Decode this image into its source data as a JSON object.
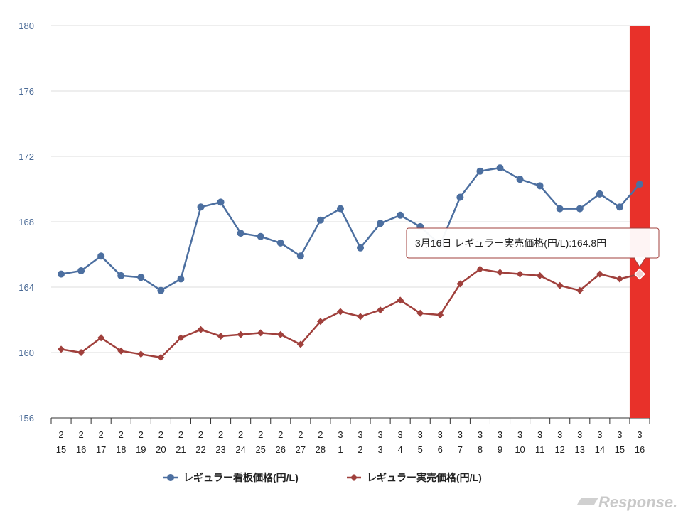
{
  "chart_data": {
    "type": "line",
    "categories": [
      [
        "2",
        "15"
      ],
      [
        "2",
        "16"
      ],
      [
        "2",
        "17"
      ],
      [
        "2",
        "18"
      ],
      [
        "2",
        "19"
      ],
      [
        "2",
        "20"
      ],
      [
        "2",
        "21"
      ],
      [
        "2",
        "22"
      ],
      [
        "2",
        "23"
      ],
      [
        "2",
        "24"
      ],
      [
        "2",
        "25"
      ],
      [
        "2",
        "26"
      ],
      [
        "2",
        "27"
      ],
      [
        "2",
        "28"
      ],
      [
        "3",
        "1"
      ],
      [
        "3",
        "2"
      ],
      [
        "3",
        "3"
      ],
      [
        "3",
        "4"
      ],
      [
        "3",
        "5"
      ],
      [
        "3",
        "6"
      ],
      [
        "3",
        "7"
      ],
      [
        "3",
        "8"
      ],
      [
        "3",
        "9"
      ],
      [
        "3",
        "10"
      ],
      [
        "3",
        "11"
      ],
      [
        "3",
        "12"
      ],
      [
        "3",
        "13"
      ],
      [
        "3",
        "14"
      ],
      [
        "3",
        "15"
      ],
      [
        "3",
        "16"
      ]
    ],
    "series": [
      {
        "name": "レギュラー看板価格(円/L)",
        "color": "#4c6fa0",
        "marker": "circle",
        "values": [
          164.8,
          165.0,
          165.9,
          164.7,
          164.6,
          163.8,
          164.5,
          168.9,
          169.2,
          167.3,
          167.1,
          166.7,
          165.9,
          168.1,
          168.8,
          166.4,
          167.9,
          168.4,
          167.7,
          166.6,
          169.5,
          171.1,
          171.3,
          170.6,
          170.2,
          168.8,
          168.8,
          169.7,
          168.9,
          170.3
        ]
      },
      {
        "name": "レギュラー実売価格(円/L)",
        "color": "#a0403c",
        "marker": "diamond",
        "values": [
          160.2,
          160.0,
          160.9,
          160.1,
          159.9,
          159.7,
          160.9,
          161.4,
          161.0,
          161.1,
          161.2,
          161.1,
          160.5,
          161.9,
          162.5,
          162.2,
          162.6,
          163.2,
          162.4,
          162.3,
          164.2,
          165.1,
          164.9,
          164.8,
          164.7,
          164.1,
          163.8,
          164.8,
          164.5,
          164.8
        ]
      }
    ],
    "ylim": [
      156,
      180
    ],
    "yticks": [
      156,
      160,
      164,
      168,
      172,
      176,
      180
    ],
    "grid": true,
    "legend_position": "bottom",
    "highlight_index": 29,
    "highlight_color": "#e8312a",
    "tooltip": {
      "text": "3月16日 レギュラー実売価格(円/L):164.8円",
      "series_index": 1,
      "point_index": 29
    }
  },
  "watermark": "Response."
}
